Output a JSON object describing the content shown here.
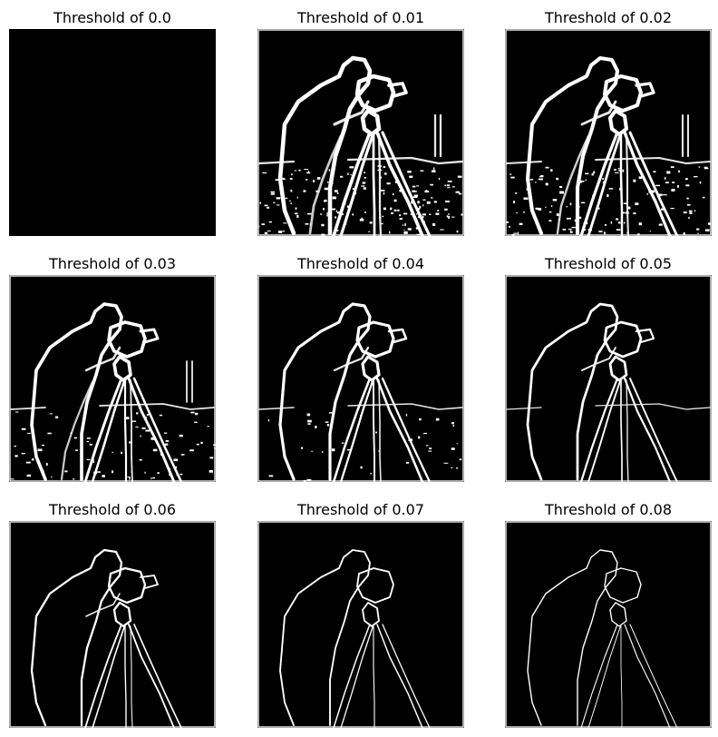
{
  "figure": {
    "background": "#ffffff",
    "panels": [
      {
        "title": "Threshold of 0.0",
        "edge_strength": 0
      },
      {
        "title": "Threshold of 0.01",
        "edge_strength": 1
      },
      {
        "title": "Threshold of 0.02",
        "edge_strength": 2
      },
      {
        "title": "Threshold of 0.03",
        "edge_strength": 3
      },
      {
        "title": "Threshold of 0.04",
        "edge_strength": 4
      },
      {
        "title": "Threshold of 0.05",
        "edge_strength": 5
      },
      {
        "title": "Threshold of 0.06",
        "edge_strength": 6
      },
      {
        "title": "Threshold of 0.07",
        "edge_strength": 7
      },
      {
        "title": "Threshold of 0.08",
        "edge_strength": 8
      }
    ]
  },
  "colors": {
    "image_background": "#000000",
    "edge": "#ffffff"
  }
}
